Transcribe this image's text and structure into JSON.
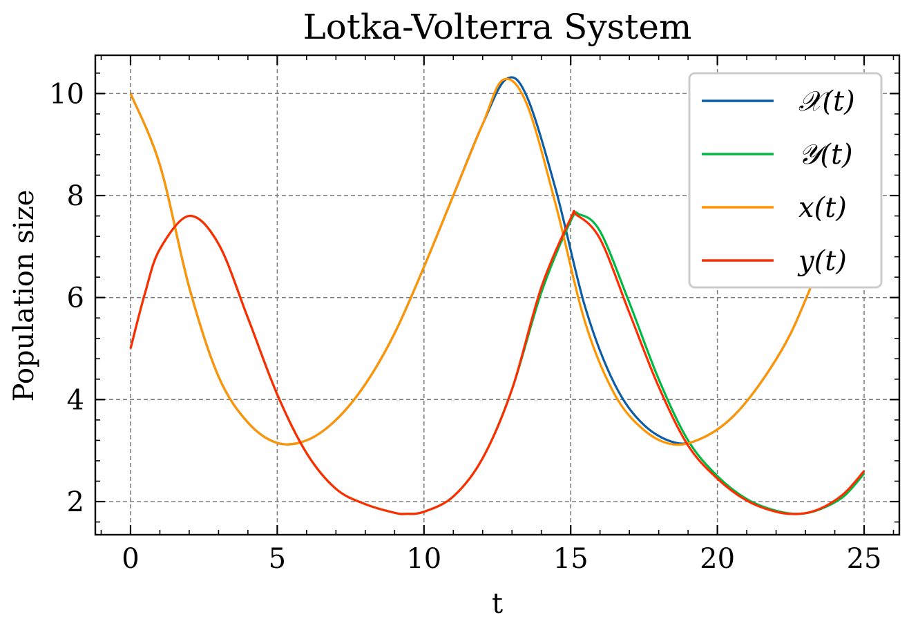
{
  "chart_data": {
    "type": "line",
    "title": "Lotka-Volterra System",
    "xlabel": "t",
    "ylabel": "Population size",
    "xlim": [
      -1.2,
      26.2
    ],
    "ylim": [
      1.35,
      10.75
    ],
    "xticks": [
      0,
      5,
      10,
      15,
      20,
      25
    ],
    "yticks": [
      2,
      4,
      6,
      8,
      10
    ],
    "xtick_labels": [
      "0",
      "5",
      "10",
      "15",
      "20",
      "25"
    ],
    "ytick_labels": [
      "2",
      "4",
      "6",
      "8",
      "10"
    ],
    "grid": true,
    "legend_position": "top-right",
    "series": [
      {
        "name": "𝒳(t)",
        "color": "#0C5DA5",
        "x": [
          0,
          1,
          2,
          3,
          4,
          5,
          6,
          7,
          8,
          9,
          10,
          11,
          12,
          12.8,
          13.5,
          14.5,
          15.5,
          16.5,
          17.5,
          18.6,
          19.5,
          20.5,
          21.5,
          22.5,
          23.5,
          24.3,
          25
        ],
        "y": [
          10.0,
          8.6,
          6.2,
          4.45,
          3.55,
          3.15,
          3.2,
          3.6,
          4.3,
          5.3,
          6.6,
          8.0,
          9.4,
          10.28,
          9.95,
          8.1,
          5.8,
          4.3,
          3.5,
          3.15,
          3.25,
          3.65,
          4.35,
          5.3,
          6.65,
          7.75,
          8.9
        ]
      },
      {
        "name": "𝒴(t)",
        "color": "#00B945",
        "x": [
          0,
          0.5,
          1,
          2,
          3,
          4,
          5,
          6,
          7,
          8,
          9,
          9.4,
          10,
          11,
          12,
          13,
          14,
          15,
          15.3,
          16,
          17,
          18,
          19,
          20,
          21,
          22,
          22.8,
          23.5,
          24.3,
          25
        ],
        "y": [
          5.0,
          6.1,
          6.95,
          7.6,
          7.05,
          5.6,
          4.1,
          2.95,
          2.25,
          1.95,
          1.78,
          1.76,
          1.8,
          2.1,
          2.85,
          4.2,
          6.1,
          7.5,
          7.63,
          7.3,
          5.9,
          4.4,
          3.2,
          2.5,
          2.05,
          1.82,
          1.76,
          1.85,
          2.1,
          2.55
        ]
      },
      {
        "name": "x(t)",
        "color": "#FF9500",
        "x": [
          0,
          1,
          2,
          3,
          4,
          5,
          6,
          7,
          8,
          9,
          10,
          11,
          12,
          12.7,
          13.5,
          14.5,
          15.5,
          16.5,
          17.5,
          18.5,
          19.5,
          20.5,
          21.5,
          22.5,
          23.5,
          24.3,
          25
        ],
        "y": [
          10.0,
          8.6,
          6.2,
          4.45,
          3.55,
          3.15,
          3.2,
          3.6,
          4.3,
          5.3,
          6.6,
          8.0,
          9.4,
          10.27,
          9.8,
          7.8,
          5.5,
          4.1,
          3.4,
          3.12,
          3.25,
          3.65,
          4.35,
          5.3,
          6.65,
          7.75,
          8.9
        ]
      },
      {
        "name": "y(t)",
        "color": "#FF2C00",
        "x": [
          0,
          0.5,
          1,
          2,
          3,
          4,
          5,
          6,
          7,
          8,
          9,
          9.4,
          10,
          11,
          12,
          13,
          14,
          15,
          15.2,
          16,
          17,
          18,
          19,
          20,
          21,
          22,
          22.8,
          23.5,
          24.3,
          25
        ],
        "y": [
          5.0,
          6.1,
          6.95,
          7.6,
          7.05,
          5.6,
          4.1,
          2.95,
          2.25,
          1.95,
          1.78,
          1.76,
          1.8,
          2.1,
          2.85,
          4.2,
          6.2,
          7.55,
          7.62,
          7.15,
          5.7,
          4.25,
          3.1,
          2.45,
          2.02,
          1.8,
          1.76,
          1.86,
          2.15,
          2.6
        ]
      }
    ]
  }
}
